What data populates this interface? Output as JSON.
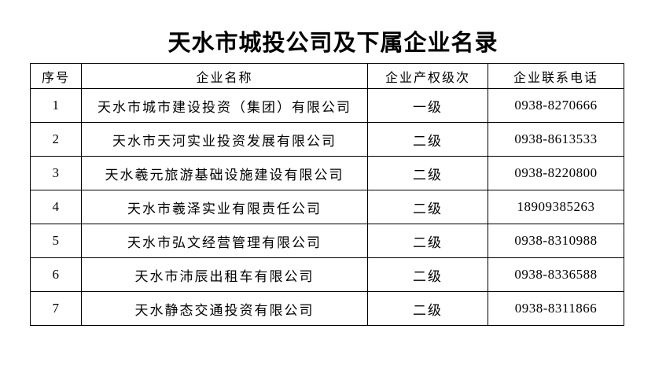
{
  "page": {
    "title": "天水市城投公司及下属企业名录"
  },
  "colors": {
    "background": "#ffffff",
    "text": "#000000",
    "border": "#000000"
  },
  "table": {
    "headers": {
      "no": "序号",
      "name": "企业名称",
      "level": "企业产权级次",
      "phone": "企业联系电话"
    },
    "rows": [
      {
        "no": "1",
        "name": "天水市城市建设投资（集团）有限公司",
        "level": "一级",
        "phone": "0938-8270666"
      },
      {
        "no": "2",
        "name": "天水市天河实业投资发展有限公司",
        "level": "二级",
        "phone": "0938-8613533"
      },
      {
        "no": "3",
        "name": "天水羲元旅游基础设施建设有限公司",
        "level": "二级",
        "phone": "0938-8220800"
      },
      {
        "no": "4",
        "name": "天水市羲泽实业有限责任公司",
        "level": "二级",
        "phone": "18909385263"
      },
      {
        "no": "5",
        "name": "天水市弘文经营管理有限公司",
        "level": "二级",
        "phone": "0938-8310988"
      },
      {
        "no": "6",
        "name": "天水市沛辰出租车有限公司",
        "level": "二级",
        "phone": "0938-8336588"
      },
      {
        "no": "7",
        "name": "天水静态交通投资有限公司",
        "level": "二级",
        "phone": "0938-8311866"
      }
    ]
  }
}
